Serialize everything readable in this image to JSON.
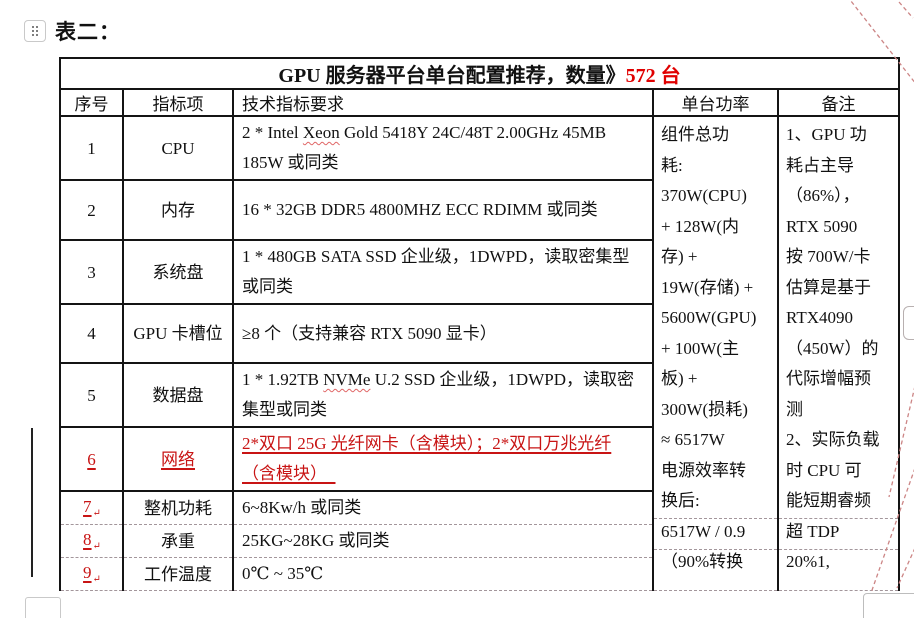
{
  "colors": {
    "revision_red": "#c81414",
    "title_count_red": "#e00000",
    "spell_check_red": "#e06666",
    "dashed_line": "#a3969b",
    "leader_line": "#cc8585",
    "table_border": "#141414"
  },
  "page": {
    "heading": "表二："
  },
  "table": {
    "title_black": "GPU 服务器平台单台配置推荐，数量》",
    "title_red": "572 台",
    "headers": {
      "no": "序号",
      "item": "指标项",
      "spec": "技术指标要求",
      "power": "单台功率",
      "note": "备注"
    },
    "revision_mark_glyph": "↵",
    "rows": [
      {
        "no": "1",
        "item": "CPU",
        "spec": [
          {
            "t": "2 * Intel "
          },
          {
            "t": "Xeon",
            "spell": true
          },
          {
            "t": " Gold 5418Y 24C/48T 2.00GHz 45MB 185W 或同类"
          }
        ]
      },
      {
        "no": "2",
        "item": "内存",
        "spec": [
          {
            "t": "16 * 32GB DDR5 4800MHZ ECC RDIMM 或同类"
          }
        ]
      },
      {
        "no": "3",
        "item": "系统盘",
        "spec": [
          {
            "t": "1 * 480GB SATA SSD  企业级，1DWPD，读取密集型或同类"
          }
        ]
      },
      {
        "no": "4",
        "item": "GPU 卡槽位",
        "spec": [
          {
            "t": "≥8 个（支持兼容 RTX 5090 显卡）"
          }
        ]
      },
      {
        "no": "5",
        "item": "数据盘",
        "spec": [
          {
            "t": "1 * 1.92TB "
          },
          {
            "t": "NVMe",
            "spell": true
          },
          {
            "t": " U.2 SSD  企业级，1DWPD，读取密集型或同类"
          }
        ]
      },
      {
        "no": "6",
        "item": "网络",
        "inserted": true,
        "spec": [
          {
            "t": "2*双口 25G 光纤网卡（含模块）；2*双口万兆光纤（含模块）　",
            "ins": true
          }
        ]
      },
      {
        "no": "7",
        "item": "整机功耗",
        "num_ins": true,
        "mark": true,
        "dashed": true,
        "spec": [
          {
            "t": "6~8Kw/h 或同类"
          }
        ]
      },
      {
        "no": "8",
        "item": "承重",
        "num_ins": true,
        "mark": true,
        "dashed": true,
        "spec": [
          {
            "t": "25KG~28KG 或同类"
          }
        ]
      },
      {
        "no": "9",
        "item": "工作温度",
        "num_ins": true,
        "mark": true,
        "dashed": true,
        "spec": [
          {
            "t": "0℃ ~ 35℃"
          }
        ]
      }
    ],
    "power_lines": [
      "组件总功",
      "耗:",
      "370W(CPU)",
      "+ 128W(内",
      "存) +",
      "19W(存储) +",
      "5600W(GPU)",
      "+ 100W(主",
      "板) +",
      "300W(损耗)",
      "≈  6517W",
      "电源效率转",
      "换后:",
      "6517W / 0.9",
      "（90%转换"
    ],
    "note_lines": [
      "1、GPU 功",
      "耗占主导",
      "（86%），",
      "RTX 5090",
      "按 700W/卡",
      "估算是基于",
      "RTX4090",
      "（450W）的",
      "代际增幅预",
      "测",
      "2、实际负载",
      "时 CPU 可",
      "能短期睿频",
      "超 TDP",
      "20%1,"
    ]
  }
}
